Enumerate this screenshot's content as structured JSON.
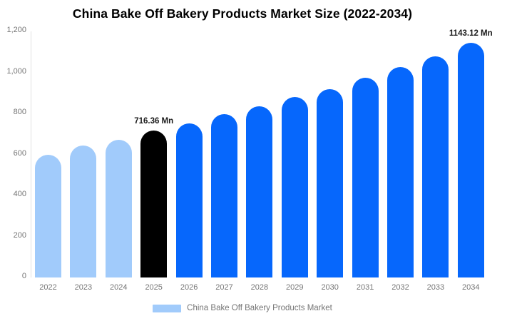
{
  "title": "China Bake Off Bakery Products Market Size (2022-2034)",
  "legend": {
    "label": "China Bake Off Bakery Products Market"
  },
  "palette": {
    "light_blue": "#a1cbfb",
    "black": "#000000",
    "blue": "#0667fc",
    "axis_line": "#e0e0e0",
    "tick_text": "#757575",
    "title_text": "#000000"
  },
  "chart_data": {
    "type": "bar",
    "title": "China Bake Off Bakery Products Market Size (2022-2034)",
    "unit": "Mn",
    "categories": [
      "2022",
      "2023",
      "2024",
      "2025",
      "2026",
      "2027",
      "2028",
      "2029",
      "2030",
      "2031",
      "2032",
      "2033",
      "2034"
    ],
    "values": [
      600,
      645,
      670,
      716.36,
      752,
      795,
      835,
      880,
      920,
      975,
      1025,
      1080,
      1143.12
    ],
    "value_labels": [
      "",
      "",
      "",
      "716.36 Mn",
      "",
      "",
      "",
      "",
      "",
      "",
      "",
      "",
      "1143.12 Mn"
    ],
    "bar_color_keys": [
      "light_blue",
      "light_blue",
      "light_blue",
      "black",
      "blue",
      "blue",
      "blue",
      "blue",
      "blue",
      "blue",
      "blue",
      "blue",
      "blue"
    ],
    "xlabel": "",
    "ylabel": "",
    "ylim": [
      0,
      1200
    ],
    "y_ticks": [
      {
        "value": 1200,
        "label": "1,200"
      },
      {
        "value": 1000,
        "label": "1,000"
      },
      {
        "value": 800,
        "label": "800"
      },
      {
        "value": 600,
        "label": "600"
      },
      {
        "value": 400,
        "label": "400"
      },
      {
        "value": 200,
        "label": "200"
      },
      {
        "value": 0,
        "label": "0"
      }
    ],
    "grid": false,
    "legend_entries": [
      "China Bake Off Bakery Products Market"
    ],
    "legend_position": "bottom"
  }
}
